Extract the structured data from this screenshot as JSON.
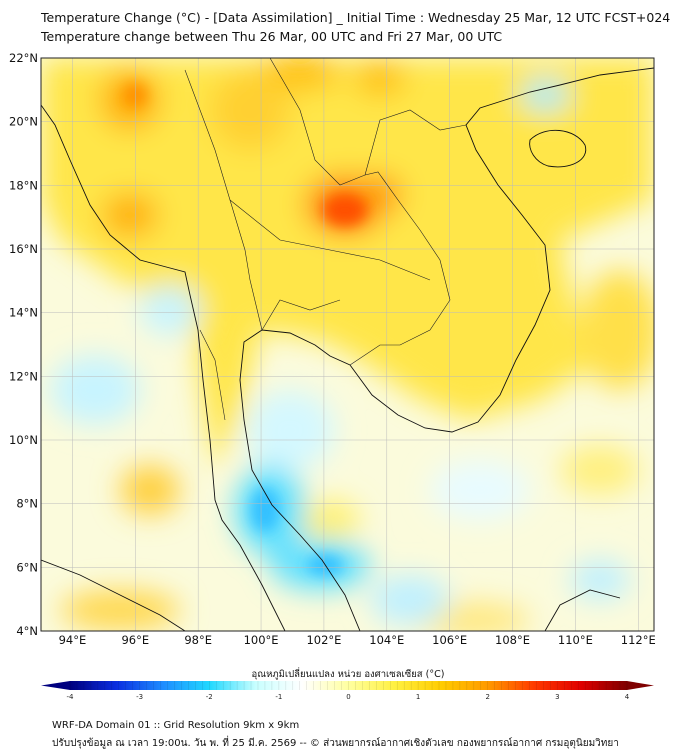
{
  "title": {
    "line1": "Temperature Change (°C) - [Data Assimilation] _ Initial Time : Wednesday 25 Mar, 12 UTC FCST+024",
    "line2": "Temperature change between Thu 26 Mar, 00 UTC and Fri 27 Mar, 00 UTC"
  },
  "map": {
    "lat_range": [
      4,
      22
    ],
    "lon_range": [
      93,
      112.5
    ],
    "lat_labels": [
      "4°N",
      "6°N",
      "8°N",
      "10°N",
      "12°N",
      "14°N",
      "16°N",
      "18°N",
      "20°N",
      "22°N"
    ],
    "lon_labels": [
      "94°E",
      "96°E",
      "98°E",
      "100°E",
      "102°E",
      "104°E",
      "106°E",
      "108°E",
      "110°E",
      "112°E"
    ],
    "variable": "temperature change"
  },
  "colorbar": {
    "label": "อุณหภูมิเปลี่ยนแปลง หน่วย องศาเซลเซียส (°C)",
    "ticks": [
      "-4",
      "-3",
      "-2",
      "-1",
      "0",
      "1",
      "2",
      "3",
      "4"
    ],
    "range": [
      -4,
      4
    ],
    "colors": [
      "#00007f",
      "#0a2ee0",
      "#1e8cff",
      "#20d8ff",
      "#c8ffff",
      "#ffffff",
      "#ffffa0",
      "#fff040",
      "#ffcc00",
      "#ff9a00",
      "#ff3a00",
      "#e00000",
      "#7f0000"
    ]
  },
  "footer": {
    "line1": "WRF-DA Domain 01 :: Grid Resolution 9km x 9km",
    "line2": "ปรับปรุงข้อมูล ณ เวลา 19:00น. วัน พ. ที่ 25 มี.ค. 2569 -- © ส่วนพยากรณ์อากาศเชิงตัวเลข กองพยากรณ์อากาศ กรมอุตุนิยมวิทยา"
  }
}
